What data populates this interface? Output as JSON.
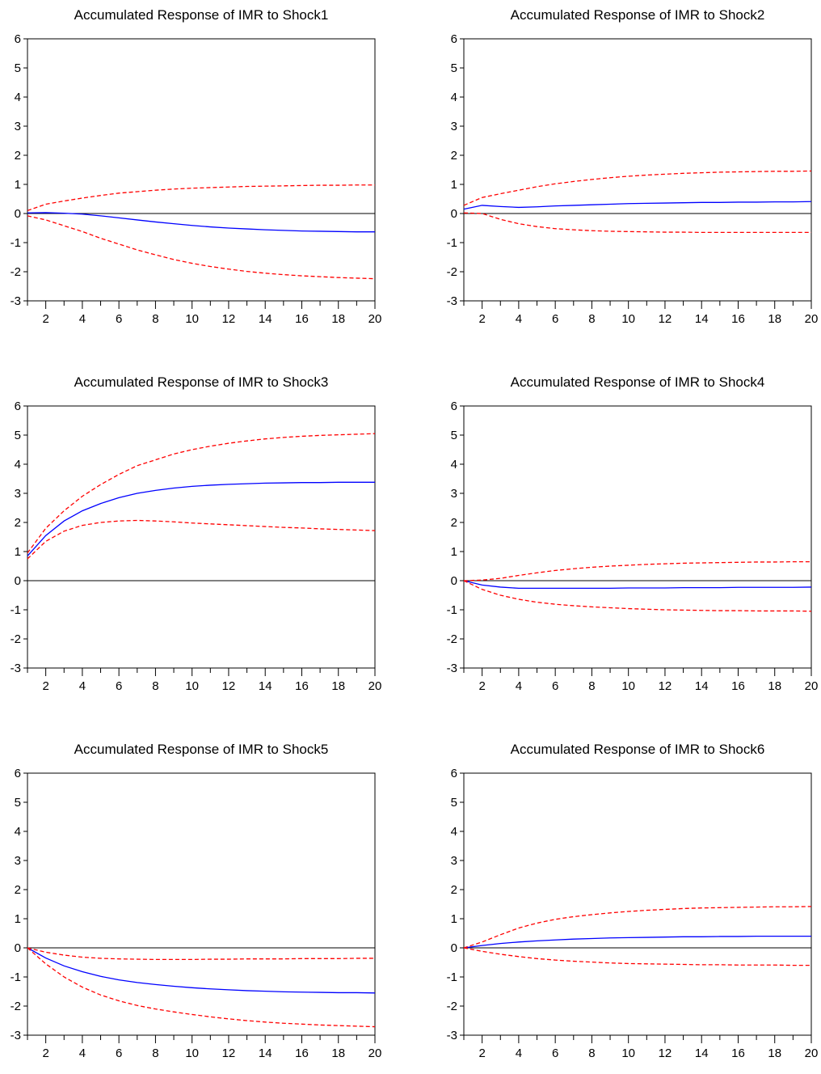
{
  "chart_data": [
    {
      "type": "line",
      "title": "Accumulated Response of IMR to Shock1",
      "xlim": [
        1,
        20
      ],
      "ylim": [
        -3,
        6
      ],
      "x": [
        1,
        2,
        3,
        4,
        5,
        6,
        7,
        8,
        9,
        10,
        11,
        12,
        13,
        14,
        15,
        16,
        17,
        18,
        19,
        20
      ],
      "x_ticks": [
        2,
        4,
        6,
        8,
        10,
        12,
        14,
        16,
        18,
        20
      ],
      "y_ticks": [
        -3,
        -2,
        -1,
        0,
        1,
        2,
        3,
        4,
        5,
        6
      ],
      "series": [
        {
          "role": "response",
          "color": "#0000ff",
          "style": "solid",
          "values": [
            0.02,
            0.03,
            0.01,
            -0.02,
            -0.08,
            -0.15,
            -0.22,
            -0.29,
            -0.35,
            -0.41,
            -0.46,
            -0.5,
            -0.53,
            -0.56,
            -0.58,
            -0.6,
            -0.61,
            -0.62,
            -0.63,
            -0.63
          ]
        },
        {
          "role": "upper band",
          "color": "#ff0000",
          "style": "dashed",
          "values": [
            0.1,
            0.32,
            0.43,
            0.53,
            0.62,
            0.7,
            0.75,
            0.8,
            0.84,
            0.87,
            0.89,
            0.91,
            0.93,
            0.94,
            0.95,
            0.96,
            0.97,
            0.97,
            0.98,
            0.98
          ]
        },
        {
          "role": "lower band",
          "color": "#ff0000",
          "style": "dashed",
          "values": [
            -0.08,
            -0.22,
            -0.42,
            -0.62,
            -0.85,
            -1.05,
            -1.25,
            -1.42,
            -1.58,
            -1.71,
            -1.82,
            -1.91,
            -1.99,
            -2.05,
            -2.1,
            -2.14,
            -2.17,
            -2.2,
            -2.22,
            -2.24
          ]
        }
      ]
    },
    {
      "type": "line",
      "title": "Accumulated Response of IMR to Shock2",
      "xlim": [
        1,
        20
      ],
      "ylim": [
        -3,
        6
      ],
      "x": [
        1,
        2,
        3,
        4,
        5,
        6,
        7,
        8,
        9,
        10,
        11,
        12,
        13,
        14,
        15,
        16,
        17,
        18,
        19,
        20
      ],
      "x_ticks": [
        2,
        4,
        6,
        8,
        10,
        12,
        14,
        16,
        18,
        20
      ],
      "y_ticks": [
        -3,
        -2,
        -1,
        0,
        1,
        2,
        3,
        4,
        5,
        6
      ],
      "series": [
        {
          "role": "response",
          "color": "#0000ff",
          "style": "solid",
          "values": [
            0.15,
            0.28,
            0.24,
            0.21,
            0.23,
            0.26,
            0.28,
            0.3,
            0.32,
            0.34,
            0.35,
            0.36,
            0.37,
            0.38,
            0.38,
            0.39,
            0.39,
            0.4,
            0.4,
            0.41
          ]
        },
        {
          "role": "upper band",
          "color": "#ff0000",
          "style": "dashed",
          "values": [
            0.28,
            0.55,
            0.68,
            0.8,
            0.92,
            1.02,
            1.1,
            1.17,
            1.23,
            1.28,
            1.32,
            1.35,
            1.38,
            1.4,
            1.42,
            1.43,
            1.44,
            1.45,
            1.45,
            1.46
          ]
        },
        {
          "role": "lower band",
          "color": "#ff0000",
          "style": "dashed",
          "values": [
            0.02,
            0.0,
            -0.2,
            -0.35,
            -0.45,
            -0.52,
            -0.56,
            -0.59,
            -0.61,
            -0.62,
            -0.63,
            -0.64,
            -0.64,
            -0.65,
            -0.65,
            -0.65,
            -0.65,
            -0.65,
            -0.65,
            -0.65
          ]
        }
      ]
    },
    {
      "type": "line",
      "title": "Accumulated Response of IMR to Shock3",
      "xlim": [
        1,
        20
      ],
      "ylim": [
        -3,
        6
      ],
      "x": [
        1,
        2,
        3,
        4,
        5,
        6,
        7,
        8,
        9,
        10,
        11,
        12,
        13,
        14,
        15,
        16,
        17,
        18,
        19,
        20
      ],
      "x_ticks": [
        2,
        4,
        6,
        8,
        10,
        12,
        14,
        16,
        18,
        20
      ],
      "y_ticks": [
        -3,
        -2,
        -1,
        0,
        1,
        2,
        3,
        4,
        5,
        6
      ],
      "series": [
        {
          "role": "response",
          "color": "#0000ff",
          "style": "solid",
          "values": [
            0.85,
            1.55,
            2.05,
            2.4,
            2.65,
            2.85,
            3.0,
            3.1,
            3.18,
            3.24,
            3.28,
            3.31,
            3.33,
            3.35,
            3.36,
            3.37,
            3.37,
            3.38,
            3.38,
            3.38
          ]
        },
        {
          "role": "upper band",
          "color": "#ff0000",
          "style": "dashed",
          "values": [
            0.95,
            1.8,
            2.4,
            2.9,
            3.3,
            3.65,
            3.95,
            4.15,
            4.35,
            4.5,
            4.62,
            4.72,
            4.8,
            4.87,
            4.92,
            4.96,
            4.99,
            5.01,
            5.03,
            5.05
          ]
        },
        {
          "role": "lower band",
          "color": "#ff0000",
          "style": "dashed",
          "values": [
            0.75,
            1.35,
            1.7,
            1.9,
            2.0,
            2.05,
            2.07,
            2.05,
            2.02,
            1.98,
            1.95,
            1.92,
            1.89,
            1.86,
            1.83,
            1.81,
            1.78,
            1.76,
            1.74,
            1.72
          ]
        }
      ]
    },
    {
      "type": "line",
      "title": "Accumulated Response of IMR to Shock4",
      "xlim": [
        1,
        20
      ],
      "ylim": [
        -3,
        6
      ],
      "x": [
        1,
        2,
        3,
        4,
        5,
        6,
        7,
        8,
        9,
        10,
        11,
        12,
        13,
        14,
        15,
        16,
        17,
        18,
        19,
        20
      ],
      "x_ticks": [
        2,
        4,
        6,
        8,
        10,
        12,
        14,
        16,
        18,
        20
      ],
      "y_ticks": [
        -3,
        -2,
        -1,
        0,
        1,
        2,
        3,
        4,
        5,
        6
      ],
      "series": [
        {
          "role": "response",
          "color": "#0000ff",
          "style": "solid",
          "values": [
            0.0,
            -0.15,
            -0.22,
            -0.26,
            -0.26,
            -0.26,
            -0.26,
            -0.26,
            -0.26,
            -0.25,
            -0.25,
            -0.25,
            -0.24,
            -0.24,
            -0.24,
            -0.23,
            -0.23,
            -0.23,
            -0.23,
            -0.22
          ]
        },
        {
          "role": "upper band",
          "color": "#ff0000",
          "style": "dashed",
          "values": [
            0.0,
            0.02,
            0.08,
            0.18,
            0.27,
            0.35,
            0.41,
            0.46,
            0.5,
            0.53,
            0.56,
            0.58,
            0.6,
            0.61,
            0.62,
            0.63,
            0.64,
            0.64,
            0.65,
            0.65
          ]
        },
        {
          "role": "lower band",
          "color": "#ff0000",
          "style": "dashed",
          "values": [
            0.0,
            -0.3,
            -0.5,
            -0.64,
            -0.74,
            -0.81,
            -0.86,
            -0.9,
            -0.93,
            -0.96,
            -0.98,
            -1.0,
            -1.01,
            -1.02,
            -1.03,
            -1.03,
            -1.04,
            -1.04,
            -1.04,
            -1.05
          ]
        }
      ]
    },
    {
      "type": "line",
      "title": "Accumulated Response of IMR to Shock5",
      "xlim": [
        1,
        20
      ],
      "ylim": [
        -3,
        6
      ],
      "x": [
        1,
        2,
        3,
        4,
        5,
        6,
        7,
        8,
        9,
        10,
        11,
        12,
        13,
        14,
        15,
        16,
        17,
        18,
        19,
        20
      ],
      "x_ticks": [
        2,
        4,
        6,
        8,
        10,
        12,
        14,
        16,
        18,
        20
      ],
      "y_ticks": [
        -3,
        -2,
        -1,
        0,
        1,
        2,
        3,
        4,
        5,
        6
      ],
      "series": [
        {
          "role": "response",
          "color": "#0000ff",
          "style": "solid",
          "values": [
            0.0,
            -0.35,
            -0.62,
            -0.82,
            -0.98,
            -1.1,
            -1.19,
            -1.26,
            -1.32,
            -1.37,
            -1.41,
            -1.44,
            -1.47,
            -1.49,
            -1.51,
            -1.52,
            -1.53,
            -1.54,
            -1.54,
            -1.55
          ]
        },
        {
          "role": "upper band",
          "color": "#ff0000",
          "style": "dashed",
          "values": [
            0.0,
            -0.15,
            -0.25,
            -0.32,
            -0.36,
            -0.38,
            -0.39,
            -0.4,
            -0.4,
            -0.4,
            -0.39,
            -0.39,
            -0.38,
            -0.38,
            -0.38,
            -0.37,
            -0.37,
            -0.37,
            -0.36,
            -0.36
          ]
        },
        {
          "role": "lower band",
          "color": "#ff0000",
          "style": "dashed",
          "values": [
            0.0,
            -0.55,
            -1.0,
            -1.35,
            -1.62,
            -1.82,
            -1.98,
            -2.1,
            -2.2,
            -2.29,
            -2.37,
            -2.44,
            -2.5,
            -2.55,
            -2.59,
            -2.62,
            -2.65,
            -2.67,
            -2.69,
            -2.71
          ]
        }
      ]
    },
    {
      "type": "line",
      "title": "Accumulated Response of IMR to Shock6",
      "xlim": [
        1,
        20
      ],
      "ylim": [
        -3,
        6
      ],
      "x": [
        1,
        2,
        3,
        4,
        5,
        6,
        7,
        8,
        9,
        10,
        11,
        12,
        13,
        14,
        15,
        16,
        17,
        18,
        19,
        20
      ],
      "x_ticks": [
        2,
        4,
        6,
        8,
        10,
        12,
        14,
        16,
        18,
        20
      ],
      "y_ticks": [
        -3,
        -2,
        -1,
        0,
        1,
        2,
        3,
        4,
        5,
        6
      ],
      "series": [
        {
          "role": "response",
          "color": "#0000ff",
          "style": "solid",
          "values": [
            0.0,
            0.08,
            0.15,
            0.2,
            0.24,
            0.27,
            0.3,
            0.32,
            0.34,
            0.35,
            0.36,
            0.37,
            0.38,
            0.38,
            0.39,
            0.39,
            0.4,
            0.4,
            0.4,
            0.4
          ]
        },
        {
          "role": "upper band",
          "color": "#ff0000",
          "style": "dashed",
          "values": [
            0.0,
            0.2,
            0.45,
            0.68,
            0.85,
            0.98,
            1.07,
            1.14,
            1.2,
            1.25,
            1.29,
            1.32,
            1.35,
            1.37,
            1.38,
            1.39,
            1.4,
            1.41,
            1.41,
            1.42
          ]
        },
        {
          "role": "lower band",
          "color": "#ff0000",
          "style": "dashed",
          "values": [
            0.0,
            -0.12,
            -0.22,
            -0.3,
            -0.37,
            -0.42,
            -0.46,
            -0.49,
            -0.52,
            -0.54,
            -0.55,
            -0.56,
            -0.57,
            -0.58,
            -0.58,
            -0.59,
            -0.59,
            -0.59,
            -0.6,
            -0.6
          ]
        }
      ]
    }
  ]
}
